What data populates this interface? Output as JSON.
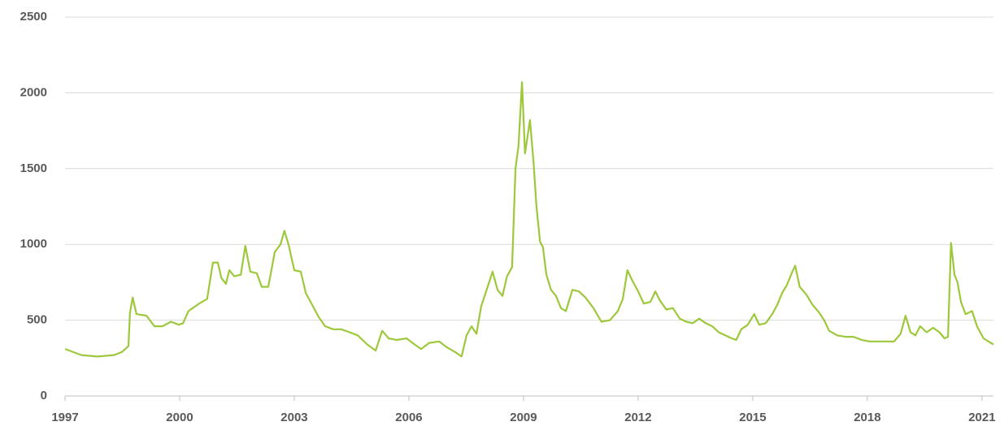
{
  "chart_data": {
    "type": "line",
    "x": [
      1997,
      1997.43,
      1997.85,
      1998.28,
      1998.49,
      1998.66,
      1998.7,
      1998.77,
      1998.87,
      1999.13,
      1999.34,
      1999.55,
      1999.77,
      1999.98,
      2000.09,
      2000.23,
      2000.51,
      2000.72,
      2000.87,
      2001,
      2001.09,
      2001.21,
      2001.3,
      2001.43,
      2001.6,
      2001.72,
      2001.85,
      2002.02,
      2002.15,
      2002.32,
      2002.49,
      2002.64,
      2002.74,
      2002.85,
      2003,
      2003.17,
      2003.3,
      2003.47,
      2003.64,
      2003.81,
      2004.02,
      2004.23,
      2004.45,
      2004.66,
      2004.91,
      2005.13,
      2005.3,
      2005.47,
      2005.68,
      2005.94,
      2006.15,
      2006.32,
      2006.53,
      2006.79,
      2007,
      2007.21,
      2007.38,
      2007.51,
      2007.64,
      2007.77,
      2007.89,
      2008.06,
      2008.19,
      2008.32,
      2008.45,
      2008.57,
      2008.7,
      2008.79,
      2008.87,
      2008.96,
      2009.04,
      2009.17,
      2009.26,
      2009.34,
      2009.43,
      2009.51,
      2009.6,
      2009.72,
      2009.85,
      2009.98,
      2010.11,
      2010.28,
      2010.45,
      2010.62,
      2010.83,
      2011.04,
      2011.26,
      2011.47,
      2011.6,
      2011.72,
      2011.85,
      2011.98,
      2012.15,
      2012.32,
      2012.45,
      2012.57,
      2012.74,
      2012.91,
      2013.09,
      2013.26,
      2013.43,
      2013.6,
      2013.77,
      2013.94,
      2014.11,
      2014.28,
      2014.45,
      2014.57,
      2014.7,
      2014.87,
      2015.04,
      2015.17,
      2015.34,
      2015.51,
      2015.64,
      2015.77,
      2015.89,
      2016.02,
      2016.11,
      2016.23,
      2016.4,
      2016.57,
      2016.74,
      2016.87,
      2017,
      2017.21,
      2017.43,
      2017.64,
      2017.85,
      2018.06,
      2018.28,
      2018.49,
      2018.7,
      2018.87,
      2019,
      2019.13,
      2019.26,
      2019.38,
      2019.55,
      2019.72,
      2019.89,
      2020.02,
      2020.11,
      2020.19,
      2020.28,
      2020.36,
      2020.45,
      2020.57,
      2020.74,
      2020.87,
      2021.04,
      2021.17,
      2021.3
    ],
    "series": [
      {
        "color": "#9dc83b",
        "values": [
          310,
          270,
          260,
          270,
          290,
          330,
          550,
          650,
          540,
          530,
          460,
          460,
          490,
          470,
          480,
          560,
          610,
          640,
          880,
          880,
          780,
          740,
          830,
          790,
          800,
          990,
          820,
          810,
          720,
          720,
          950,
          1000,
          1090,
          1000,
          830,
          820,
          680,
          600,
          520,
          460,
          440,
          440,
          420,
          400,
          340,
          300,
          430,
          380,
          370,
          380,
          340,
          310,
          350,
          360,
          320,
          290,
          260,
          400,
          460,
          410,
          590,
          720,
          820,
          700,
          660,
          790,
          850,
          1500,
          1650,
          2070,
          1600,
          1820,
          1550,
          1250,
          1020,
          980,
          800,
          700,
          660,
          580,
          560,
          700,
          690,
          650,
          580,
          490,
          500,
          560,
          640,
          830,
          760,
          700,
          610,
          620,
          690,
          630,
          570,
          580,
          510,
          490,
          480,
          510,
          480,
          460,
          420,
          400,
          380,
          370,
          440,
          470,
          540,
          470,
          480,
          540,
          600,
          680,
          730,
          810,
          860,
          720,
          670,
          600,
          550,
          500,
          430,
          400,
          390,
          390,
          370,
          360,
          360,
          360,
          360,
          410,
          530,
          420,
          400,
          460,
          420,
          450,
          420,
          380,
          390,
          1010,
          800,
          750,
          620,
          540,
          560,
          460,
          380,
          360,
          340
        ]
      }
    ],
    "xlim": [
      1997,
      2021.3
    ],
    "xticks": [
      1997,
      2000,
      2003,
      2006,
      2009,
      2012,
      2015,
      2018,
      2021
    ],
    "ylim": [
      0,
      2500
    ],
    "yticks": [
      0,
      500,
      1000,
      1500,
      2000,
      2500
    ],
    "grid": true
  }
}
